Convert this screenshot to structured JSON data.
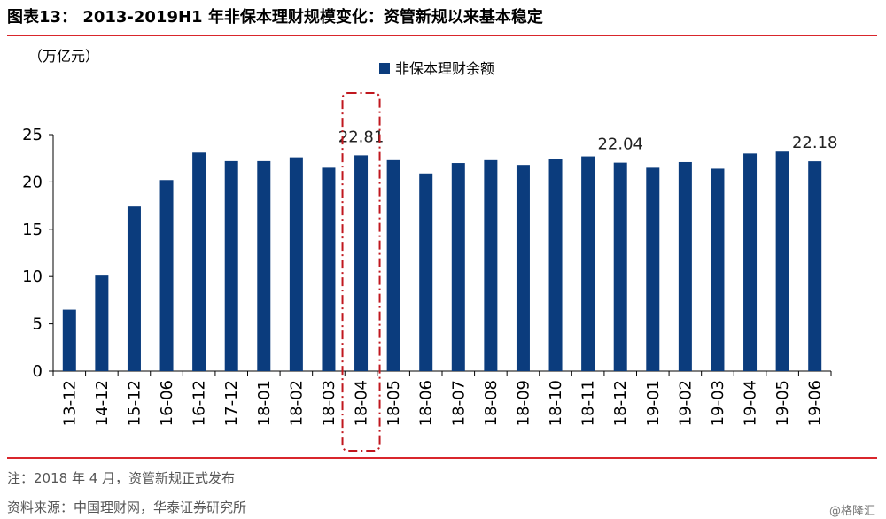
{
  "header": {
    "title": "图表13： 2013-2019H1 年非保本理财规模变化：资管新规以来基本稳定"
  },
  "unit_label": "（万亿元）",
  "footer": {
    "note": "注：2018 年 4 月，资管新规正式发布",
    "source": "资料来源：中国理财网，华泰证券研究所",
    "watermark": "@格隆汇"
  },
  "chart_data": {
    "type": "bar",
    "categories": [
      "13-12",
      "14-12",
      "15-12",
      "16-06",
      "16-12",
      "17-12",
      "18-01",
      "18-02",
      "18-03",
      "18-04",
      "18-05",
      "18-06",
      "18-07",
      "18-08",
      "18-09",
      "18-10",
      "18-11",
      "18-12",
      "19-01",
      "19-02",
      "19-03",
      "19-04",
      "19-05",
      "19-06"
    ],
    "series": [
      {
        "name": "非保本理财余额",
        "values": [
          6.5,
          10.1,
          17.4,
          20.2,
          23.1,
          22.2,
          22.2,
          22.6,
          21.5,
          22.81,
          22.3,
          20.9,
          22.0,
          22.3,
          21.8,
          22.4,
          22.7,
          22.04,
          21.5,
          22.1,
          21.4,
          23.0,
          23.2,
          22.18
        ]
      }
    ],
    "data_labels": [
      {
        "category": "18-04",
        "text": "22.81"
      },
      {
        "category": "18-12",
        "text": "22.04"
      },
      {
        "category": "19-06",
        "text": "22.18"
      }
    ],
    "highlight": {
      "category": "18-04",
      "color": "#c0171e"
    },
    "yticks": [
      "0",
      "5",
      "10",
      "15",
      "20",
      "25"
    ],
    "ylim": [
      0,
      25
    ],
    "legend_position": "top-center",
    "bar_color": "#0b3c7d",
    "grid": false
  }
}
